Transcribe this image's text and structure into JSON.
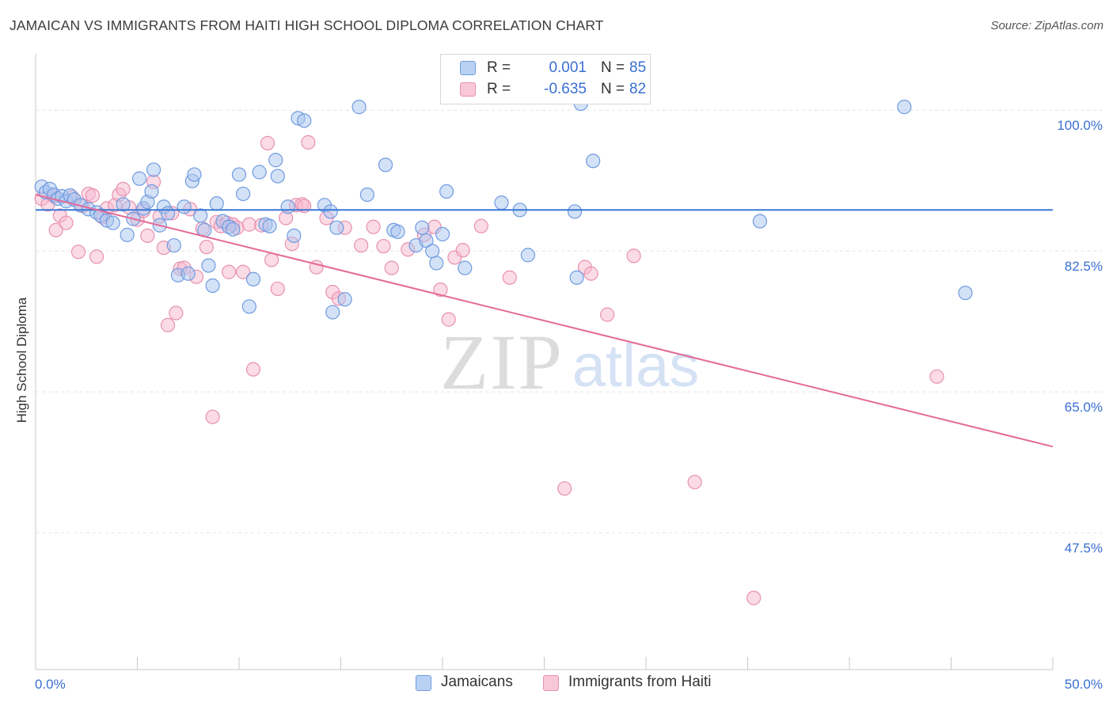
{
  "header": {
    "title": "JAMAICAN VS IMMIGRANTS FROM HAITI HIGH SCHOOL DIPLOMA CORRELATION CHART",
    "source": "Source: ZipAtlas.com"
  },
  "watermark": {
    "zip": "ZIP",
    "atlas": "atlas"
  },
  "legend": {
    "rows": [
      {
        "r_label": "R =",
        "r_value": "0.001",
        "n_label": "N =",
        "n_value": "85"
      },
      {
        "r_label": "R =",
        "r_value": "-0.635",
        "n_label": "N =",
        "n_value": "82"
      }
    ]
  },
  "bottom_legend": {
    "series1": "Jamaicans",
    "series2": "Immigrants from Haiti"
  },
  "colors": {
    "blue_fill": "#a9c6f0",
    "blue_stroke": "#6f9be0",
    "blue_line": "#3a78d4",
    "pink_fill": "#f6b8cd",
    "pink_stroke": "#e891b0",
    "pink_line": "#e56a97",
    "tick_label": "#3a6fd1",
    "grid": "#e3e3e3"
  },
  "chart_data": {
    "type": "scatter",
    "title": "JAMAICAN VS IMMIGRANTS FROM HAITI HIGH SCHOOL DIPLOMA CORRELATION CHART",
    "xlabel": "",
    "ylabel": "High School Diploma",
    "xlim": [
      0,
      50
    ],
    "ylim": [
      30.5,
      107
    ],
    "x_tick_labels": [
      "0.0%",
      "50.0%"
    ],
    "y_ticks": [
      47.5,
      65.0,
      82.5,
      100.0
    ],
    "y_tick_labels": [
      "47.5%",
      "65.0%",
      "82.5%",
      "100.0%"
    ],
    "grid": true,
    "legend_position": "top-center",
    "series": [
      {
        "name": "Jamaicans",
        "R": 0.001,
        "N": 85,
        "trend": {
          "x": [
            0,
            50
          ],
          "y": [
            87.6,
            87.6
          ]
        },
        "points": [
          [
            0.3,
            90.5
          ],
          [
            0.5,
            89.8
          ],
          [
            0.7,
            90.2
          ],
          [
            0.9,
            89.5
          ],
          [
            1.1,
            89.0
          ],
          [
            1.3,
            89.3
          ],
          [
            1.5,
            88.7
          ],
          [
            1.7,
            89.4
          ],
          [
            1.9,
            88.9
          ],
          [
            2.2,
            88.2
          ],
          [
            2.6,
            87.7
          ],
          [
            3.0,
            87.3
          ],
          [
            3.2,
            86.9
          ],
          [
            3.5,
            86.3
          ],
          [
            3.8,
            86.0
          ],
          [
            4.3,
            88.3
          ],
          [
            4.5,
            84.5
          ],
          [
            4.8,
            86.5
          ],
          [
            5.1,
            91.5
          ],
          [
            5.3,
            87.8
          ],
          [
            5.5,
            88.6
          ],
          [
            5.7,
            89.9
          ],
          [
            5.8,
            92.6
          ],
          [
            6.1,
            85.7
          ],
          [
            6.3,
            88.0
          ],
          [
            6.5,
            87.2
          ],
          [
            6.8,
            83.2
          ],
          [
            7.0,
            79.5
          ],
          [
            7.3,
            88.0
          ],
          [
            7.5,
            79.7
          ],
          [
            7.7,
            91.2
          ],
          [
            7.8,
            92.0
          ],
          [
            8.1,
            86.9
          ],
          [
            8.3,
            85.1
          ],
          [
            8.5,
            80.7
          ],
          [
            8.7,
            78.2
          ],
          [
            8.9,
            88.4
          ],
          [
            9.2,
            86.2
          ],
          [
            9.5,
            85.5
          ],
          [
            9.7,
            85.2
          ],
          [
            10.0,
            92.0
          ],
          [
            10.2,
            89.6
          ],
          [
            10.5,
            75.6
          ],
          [
            10.7,
            79.0
          ],
          [
            11.0,
            92.3
          ],
          [
            11.3,
            85.8
          ],
          [
            11.5,
            85.6
          ],
          [
            11.8,
            93.8
          ],
          [
            11.9,
            91.8
          ],
          [
            12.4,
            88.0
          ],
          [
            12.7,
            84.4
          ],
          [
            12.9,
            99.0
          ],
          [
            13.2,
            98.7
          ],
          [
            14.2,
            88.2
          ],
          [
            14.5,
            87.4
          ],
          [
            14.6,
            74.9
          ],
          [
            14.8,
            85.4
          ],
          [
            15.2,
            76.5
          ],
          [
            15.9,
            100.4
          ],
          [
            16.3,
            89.5
          ],
          [
            17.2,
            93.2
          ],
          [
            17.6,
            85.1
          ],
          [
            17.8,
            84.9
          ],
          [
            18.7,
            83.2
          ],
          [
            19.0,
            85.4
          ],
          [
            19.2,
            83.8
          ],
          [
            19.5,
            82.5
          ],
          [
            19.7,
            81.0
          ],
          [
            20.0,
            84.6
          ],
          [
            20.2,
            89.9
          ],
          [
            21.1,
            80.4
          ],
          [
            22.9,
            88.5
          ],
          [
            23.8,
            87.6
          ],
          [
            24.2,
            82.0
          ],
          [
            26.5,
            87.4
          ],
          [
            26.6,
            79.2
          ],
          [
            26.8,
            100.8
          ],
          [
            27.4,
            93.7
          ],
          [
            35.6,
            86.2
          ],
          [
            42.7,
            100.4
          ],
          [
            45.7,
            77.3
          ]
        ]
      },
      {
        "name": "Immigrants from Haiti",
        "R": -0.635,
        "N": 82,
        "trend": {
          "x": [
            0,
            50
          ],
          "y": [
            89.5,
            58.2
          ]
        },
        "points": [
          [
            0.3,
            89.0
          ],
          [
            0.6,
            88.3
          ],
          [
            0.9,
            89.3
          ],
          [
            1.0,
            85.1
          ],
          [
            1.2,
            86.9
          ],
          [
            1.5,
            86.0
          ],
          [
            1.8,
            89.2
          ],
          [
            2.1,
            82.4
          ],
          [
            2.3,
            88.1
          ],
          [
            2.6,
            89.6
          ],
          [
            2.8,
            89.4
          ],
          [
            3.0,
            81.8
          ],
          [
            3.3,
            86.7
          ],
          [
            3.5,
            87.8
          ],
          [
            3.9,
            88.2
          ],
          [
            4.1,
            89.5
          ],
          [
            4.3,
            90.2
          ],
          [
            4.6,
            87.9
          ],
          [
            5.0,
            86.4
          ],
          [
            5.3,
            87.5
          ],
          [
            5.5,
            84.4
          ],
          [
            5.8,
            91.1
          ],
          [
            6.1,
            86.8
          ],
          [
            6.3,
            82.9
          ],
          [
            6.5,
            73.3
          ],
          [
            6.7,
            87.2
          ],
          [
            6.9,
            74.8
          ],
          [
            7.1,
            80.3
          ],
          [
            7.3,
            80.4
          ],
          [
            7.6,
            87.7
          ],
          [
            7.9,
            79.3
          ],
          [
            8.2,
            85.3
          ],
          [
            8.4,
            83.0
          ],
          [
            8.7,
            61.9
          ],
          [
            8.9,
            86.1
          ],
          [
            9.1,
            85.6
          ],
          [
            9.4,
            86.0
          ],
          [
            9.5,
            79.9
          ],
          [
            9.7,
            85.8
          ],
          [
            9.9,
            85.4
          ],
          [
            10.2,
            79.9
          ],
          [
            10.5,
            85.8
          ],
          [
            10.7,
            67.8
          ],
          [
            11.1,
            85.7
          ],
          [
            11.4,
            95.9
          ],
          [
            11.6,
            81.4
          ],
          [
            11.9,
            77.8
          ],
          [
            12.3,
            86.6
          ],
          [
            12.6,
            83.4
          ],
          [
            12.8,
            88.2
          ],
          [
            13.1,
            88.3
          ],
          [
            13.2,
            88.1
          ],
          [
            13.4,
            96.0
          ],
          [
            13.8,
            80.5
          ],
          [
            14.3,
            86.6
          ],
          [
            14.6,
            77.4
          ],
          [
            14.9,
            76.6
          ],
          [
            15.2,
            85.4
          ],
          [
            16.0,
            83.2
          ],
          [
            16.6,
            85.5
          ],
          [
            17.1,
            83.1
          ],
          [
            17.5,
            80.4
          ],
          [
            18.3,
            82.7
          ],
          [
            19.1,
            84.5
          ],
          [
            19.6,
            85.5
          ],
          [
            19.9,
            77.7
          ],
          [
            20.3,
            74.0
          ],
          [
            20.6,
            81.7
          ],
          [
            21.0,
            82.6
          ],
          [
            21.9,
            85.6
          ],
          [
            23.3,
            79.2
          ],
          [
            26.0,
            53.0
          ],
          [
            27.0,
            80.5
          ],
          [
            27.3,
            79.7
          ],
          [
            28.1,
            74.6
          ],
          [
            29.4,
            81.9
          ],
          [
            32.4,
            53.8
          ],
          [
            35.3,
            39.4
          ],
          [
            44.3,
            66.9
          ]
        ]
      }
    ]
  }
}
